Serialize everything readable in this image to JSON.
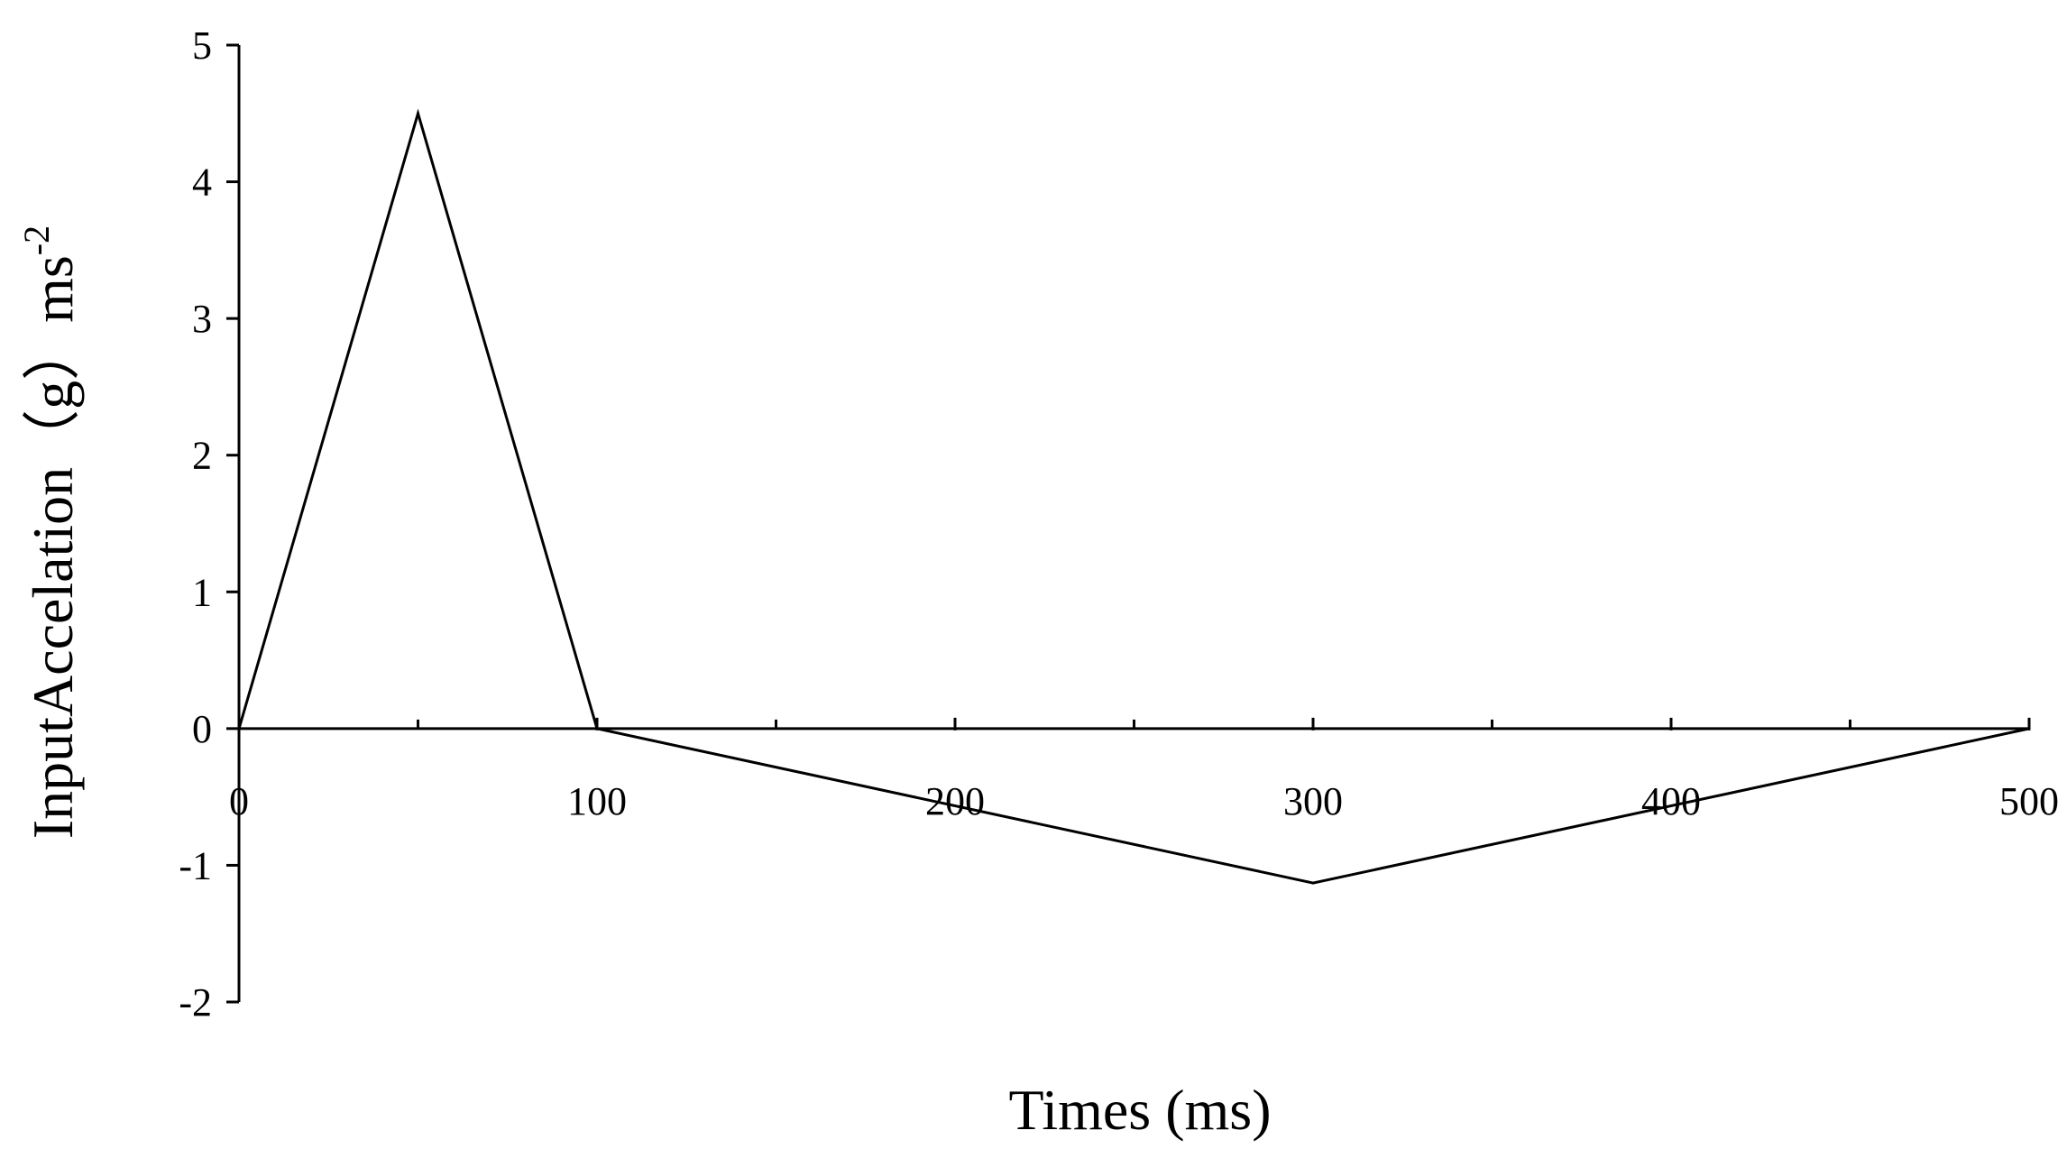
{
  "chart_data": {
    "type": "line",
    "xlabel": "Times (ms)",
    "ylabel": "InputAccelation（g）ms",
    "ylabel_superscript": "-2",
    "xlim": [
      0,
      500
    ],
    "ylim": [
      -2,
      5
    ],
    "x_ticks": [
      0,
      100,
      200,
      300,
      400,
      500
    ],
    "x_tick_labels": [
      "0",
      "100",
      "200",
      "300",
      "400",
      "500"
    ],
    "x_minor_ticks": [
      50,
      150,
      250,
      350,
      450
    ],
    "y_ticks": [
      -2,
      -1,
      0,
      1,
      2,
      3,
      4,
      5
    ],
    "y_tick_labels": [
      "-2",
      "-1",
      "0",
      "1",
      "2",
      "3",
      "4",
      "5"
    ],
    "grid": false,
    "series": [
      {
        "x": [
          0,
          50,
          100,
          300,
          500
        ],
        "y": [
          0,
          4.5,
          0,
          -1.13,
          0
        ],
        "color": "#000000"
      }
    ]
  }
}
